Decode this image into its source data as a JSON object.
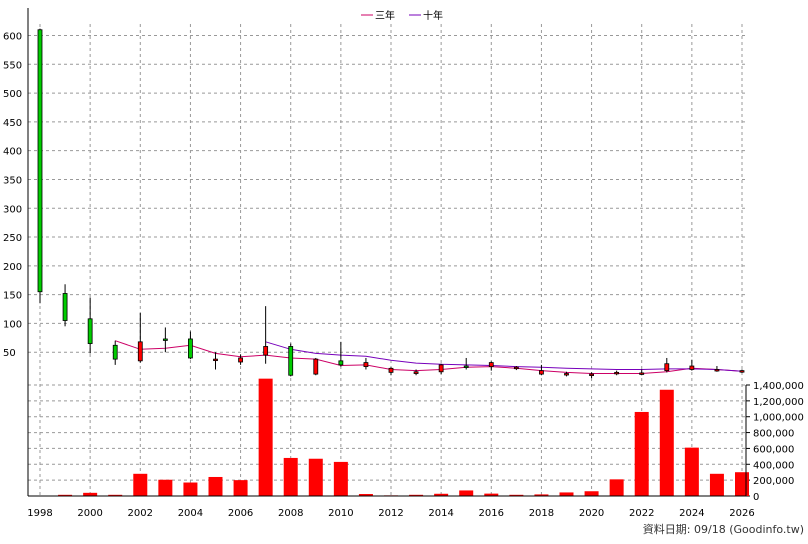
{
  "legend": [
    {
      "name": "三年",
      "color": "#cc0066"
    },
    {
      "name": "十年",
      "color": "#7700bb"
    }
  ],
  "footer_text": "資料日期: 09/18 (Goodinfo.tw)",
  "colors": {
    "up": "#00cc00",
    "down": "#ff0000",
    "volume": "#ff0000",
    "grid": "#999999"
  },
  "chart_data": {
    "type": "candlestick+bar",
    "price_axis": {
      "min": 0,
      "max": 620,
      "ticks": [
        50,
        100,
        150,
        200,
        250,
        300,
        350,
        400,
        450,
        500,
        550,
        600
      ]
    },
    "volume_axis": {
      "min": 0,
      "max": 1400000,
      "ticks": [
        0,
        200000,
        400000,
        600000,
        800000,
        1000000,
        1200000,
        1400000
      ],
      "tick_labels": [
        "0",
        "200,000",
        "400,000",
        "600,000",
        "800,000",
        "1,000,000",
        "1,200,000",
        "1,400,000"
      ]
    },
    "x_axis": {
      "min": 1998,
      "max": 2026,
      "ticks": [
        1998,
        2000,
        2002,
        2004,
        2006,
        2008,
        2010,
        2012,
        2014,
        2016,
        2018,
        2020,
        2022,
        2024,
        2026
      ]
    },
    "candles": [
      {
        "year": 1998,
        "open": 155,
        "close": 610,
        "high": 612,
        "low": 135
      },
      {
        "year": 1999,
        "open": 105,
        "close": 152,
        "high": 168,
        "low": 95
      },
      {
        "year": 2000,
        "open": 65,
        "close": 108,
        "high": 145,
        "low": 48
      },
      {
        "year": 2001,
        "open": 38,
        "close": 62,
        "high": 70,
        "low": 28
      },
      {
        "year": 2002,
        "open": 68,
        "close": 35,
        "high": 118,
        "low": 32
      },
      {
        "year": 2003,
        "open": 72,
        "close": 73,
        "high": 93,
        "low": 50
      },
      {
        "year": 2004,
        "open": 40,
        "close": 73,
        "high": 86,
        "low": 38
      },
      {
        "year": 2005,
        "open": 38,
        "close": 37,
        "high": 50,
        "low": 20
      },
      {
        "year": 2006,
        "open": 40,
        "close": 33,
        "high": 46,
        "low": 28
      },
      {
        "year": 2007,
        "open": 60,
        "close": 45,
        "high": 130,
        "low": 30
      },
      {
        "year": 2008,
        "open": 10,
        "close": 60,
        "high": 65,
        "low": 8
      },
      {
        "year": 2009,
        "open": 38,
        "close": 12,
        "high": 40,
        "low": 10
      },
      {
        "year": 2010,
        "open": 28,
        "close": 35,
        "high": 68,
        "low": 25
      },
      {
        "year": 2011,
        "open": 32,
        "close": 25,
        "high": 40,
        "low": 20
      },
      {
        "year": 2012,
        "open": 22,
        "close": 15,
        "high": 24,
        "low": 10
      },
      {
        "year": 2013,
        "open": 16,
        "close": 13,
        "high": 20,
        "low": 10
      },
      {
        "year": 2014,
        "open": 28,
        "close": 16,
        "high": 30,
        "low": 12
      },
      {
        "year": 2015,
        "open": 25,
        "close": 26,
        "high": 40,
        "low": 20
      },
      {
        "year": 2016,
        "open": 32,
        "close": 25,
        "high": 34,
        "low": 18
      },
      {
        "year": 2017,
        "open": 24,
        "close": 23,
        "high": 26,
        "low": 19
      },
      {
        "year": 2018,
        "open": 18,
        "close": 12,
        "high": 28,
        "low": 10
      },
      {
        "year": 2019,
        "open": 13,
        "close": 12,
        "high": 16,
        "low": 8
      },
      {
        "year": 2020,
        "open": 12,
        "close": 10,
        "high": 15,
        "low": 5
      },
      {
        "year": 2021,
        "open": 15,
        "close": 13,
        "high": 18,
        "low": 10
      },
      {
        "year": 2022,
        "open": 14,
        "close": 12,
        "high": 20,
        "low": 10
      },
      {
        "year": 2023,
        "open": 30,
        "close": 18,
        "high": 40,
        "low": 15
      },
      {
        "year": 2024,
        "open": 26,
        "close": 20,
        "high": 37,
        "low": 18
      },
      {
        "year": 2025,
        "open": 20,
        "close": 19,
        "high": 26,
        "low": 16
      },
      {
        "year": 2026,
        "open": 18,
        "close": 17,
        "high": 20,
        "low": 14
      }
    ],
    "volumes": [
      {
        "year": 1998,
        "value": 0
      },
      {
        "year": 1999,
        "value": 15000
      },
      {
        "year": 2000,
        "value": 40000
      },
      {
        "year": 2001,
        "value": 15000
      },
      {
        "year": 2002,
        "value": 280000
      },
      {
        "year": 2003,
        "value": 205000
      },
      {
        "year": 2004,
        "value": 170000
      },
      {
        "year": 2005,
        "value": 240000
      },
      {
        "year": 2006,
        "value": 200000
      },
      {
        "year": 2007,
        "value": 1480000
      },
      {
        "year": 2008,
        "value": 480000
      },
      {
        "year": 2009,
        "value": 470000
      },
      {
        "year": 2010,
        "value": 430000
      },
      {
        "year": 2011,
        "value": 25000
      },
      {
        "year": 2012,
        "value": 8000
      },
      {
        "year": 2013,
        "value": 15000
      },
      {
        "year": 2014,
        "value": 28000
      },
      {
        "year": 2015,
        "value": 70000
      },
      {
        "year": 2016,
        "value": 30000
      },
      {
        "year": 2017,
        "value": 15000
      },
      {
        "year": 2018,
        "value": 20000
      },
      {
        "year": 2019,
        "value": 45000
      },
      {
        "year": 2020,
        "value": 60000
      },
      {
        "year": 2021,
        "value": 210000
      },
      {
        "year": 2022,
        "value": 1060000
      },
      {
        "year": 2023,
        "value": 1340000
      },
      {
        "year": 2024,
        "value": 610000
      },
      {
        "year": 2025,
        "value": 280000
      },
      {
        "year": 2026,
        "value": 300000
      }
    ],
    "series": [
      {
        "name": "三年",
        "points": [
          [
            2001,
            70
          ],
          [
            2002,
            55
          ],
          [
            2003,
            57
          ],
          [
            2004,
            62
          ],
          [
            2005,
            48
          ],
          [
            2006,
            42
          ],
          [
            2007,
            45
          ],
          [
            2008,
            40
          ],
          [
            2009,
            38
          ],
          [
            2010,
            27
          ],
          [
            2011,
            28
          ],
          [
            2012,
            20
          ],
          [
            2013,
            18
          ],
          [
            2014,
            20
          ],
          [
            2015,
            24
          ],
          [
            2016,
            25
          ],
          [
            2017,
            22
          ],
          [
            2018,
            18
          ],
          [
            2019,
            15
          ],
          [
            2020,
            13
          ],
          [
            2021,
            13
          ],
          [
            2022,
            13
          ],
          [
            2023,
            16
          ],
          [
            2024,
            22
          ],
          [
            2025,
            20
          ],
          [
            2026,
            17
          ]
        ]
      },
      {
        "name": "十年",
        "points": [
          [
            2007,
            68
          ],
          [
            2008,
            55
          ],
          [
            2009,
            48
          ],
          [
            2010,
            45
          ],
          [
            2011,
            43
          ],
          [
            2012,
            36
          ],
          [
            2013,
            31
          ],
          [
            2014,
            29
          ],
          [
            2015,
            28
          ],
          [
            2016,
            27
          ],
          [
            2017,
            25
          ],
          [
            2018,
            24
          ],
          [
            2019,
            22
          ],
          [
            2020,
            21
          ],
          [
            2021,
            20
          ],
          [
            2022,
            20
          ],
          [
            2023,
            21
          ],
          [
            2024,
            21
          ],
          [
            2025,
            20
          ],
          [
            2026,
            17
          ]
        ]
      }
    ]
  }
}
